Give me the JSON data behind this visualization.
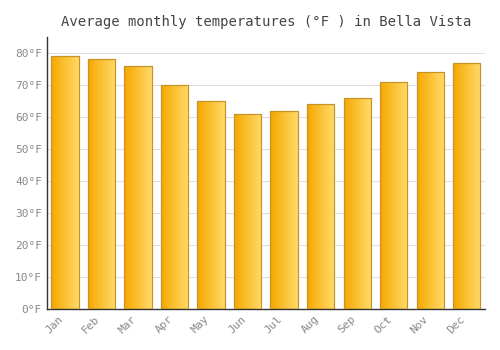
{
  "title": "Average monthly temperatures (°F ) in Bella Vista",
  "months": [
    "Jan",
    "Feb",
    "Mar",
    "Apr",
    "May",
    "Jun",
    "Jul",
    "Aug",
    "Sep",
    "Oct",
    "Nov",
    "Dec"
  ],
  "values": [
    79,
    78,
    76,
    70,
    65,
    61,
    62,
    64,
    66,
    71,
    74,
    77
  ],
  "bar_color_dark": "#F5A800",
  "bar_color_light": "#FFD966",
  "bar_edge_color": "#C8922A",
  "background_color": "#FFFFFF",
  "grid_color": "#DDDDDD",
  "yticks": [
    0,
    10,
    20,
    30,
    40,
    50,
    60,
    70,
    80
  ],
  "ylim": [
    0,
    85
  ],
  "title_fontsize": 10,
  "tick_fontsize": 8,
  "font_family": "monospace",
  "bar_width": 0.75
}
